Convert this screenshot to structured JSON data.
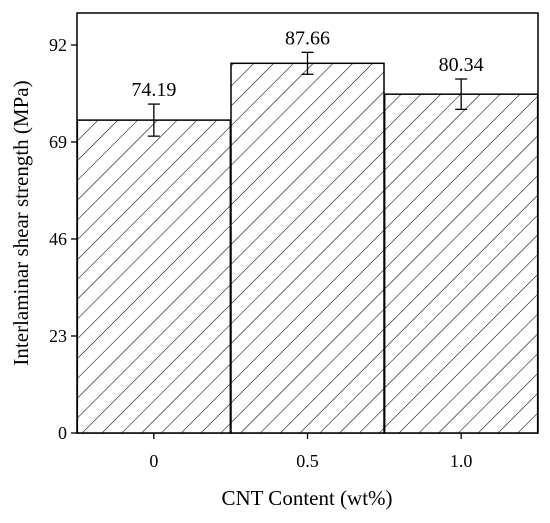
{
  "chart_data": {
    "type": "bar",
    "categories": [
      "0",
      "0.5",
      "1.0"
    ],
    "values": [
      74.19,
      87.66,
      80.34
    ],
    "errors": [
      3.8,
      2.6,
      3.6
    ],
    "data_labels": [
      "74.19",
      "87.66",
      "80.34"
    ],
    "xlabel": "CNT Content (wt%)",
    "ylabel": "Interlaminar shear strength (MPa)",
    "ylim": [
      0,
      92
    ],
    "yticks": [
      0,
      23,
      46,
      69,
      92
    ],
    "ytick_labels": [
      "0",
      "23",
      "46",
      "69",
      "92"
    ],
    "bar_pattern": "diagonal-hatch",
    "grid": false,
    "legend": "none",
    "colors": {
      "bar_fill": "#ffffff",
      "bar_stroke": "#000000",
      "hatch": "#000000"
    }
  }
}
